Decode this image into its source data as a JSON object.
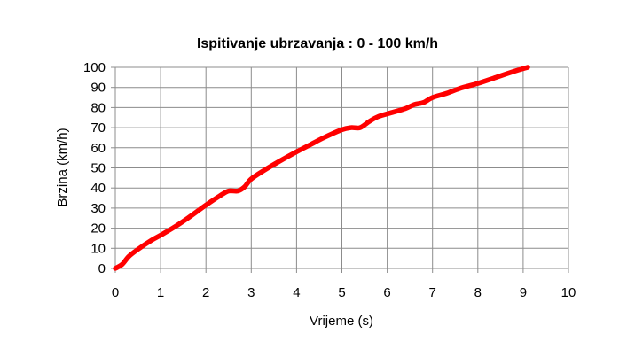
{
  "chart_data": {
    "type": "line",
    "title": "Ispitivanje ubrzavanja : 0 - 100 km/h",
    "xlabel": "Vrijeme (s)",
    "ylabel": "Brzina (km/h)",
    "xlim": [
      0,
      10
    ],
    "ylim": [
      0,
      100
    ],
    "xticks": [
      "0",
      "1",
      "2",
      "3",
      "4",
      "5",
      "6",
      "7",
      "8",
      "9",
      "10"
    ],
    "yticks": [
      "0",
      "10",
      "20",
      "30",
      "40",
      "50",
      "60",
      "70",
      "80",
      "90",
      "100"
    ],
    "grid": true,
    "legend": "none",
    "series": [
      {
        "color": "#ff0000",
        "x": [
          0,
          0.15,
          0.3,
          0.5,
          0.8,
          1.0,
          1.3,
          1.6,
          2.0,
          2.3,
          2.5,
          2.7,
          2.85,
          3.0,
          3.3,
          3.6,
          4.0,
          4.3,
          4.6,
          5.0,
          5.2,
          5.4,
          5.6,
          5.8,
          6.1,
          6.4,
          6.6,
          6.8,
          7.0,
          7.3,
          7.6,
          8.0,
          8.4,
          8.8,
          9.1
        ],
        "y": [
          0,
          2,
          6,
          9.5,
          14,
          16.5,
          20.5,
          25,
          31.5,
          36,
          38.5,
          38.5,
          40.5,
          44.5,
          49,
          53,
          58,
          61.5,
          65,
          69,
          70,
          70,
          73,
          75.5,
          77.5,
          79.5,
          81.5,
          82.5,
          85,
          87,
          89.5,
          92,
          95,
          98,
          100
        ]
      }
    ]
  }
}
